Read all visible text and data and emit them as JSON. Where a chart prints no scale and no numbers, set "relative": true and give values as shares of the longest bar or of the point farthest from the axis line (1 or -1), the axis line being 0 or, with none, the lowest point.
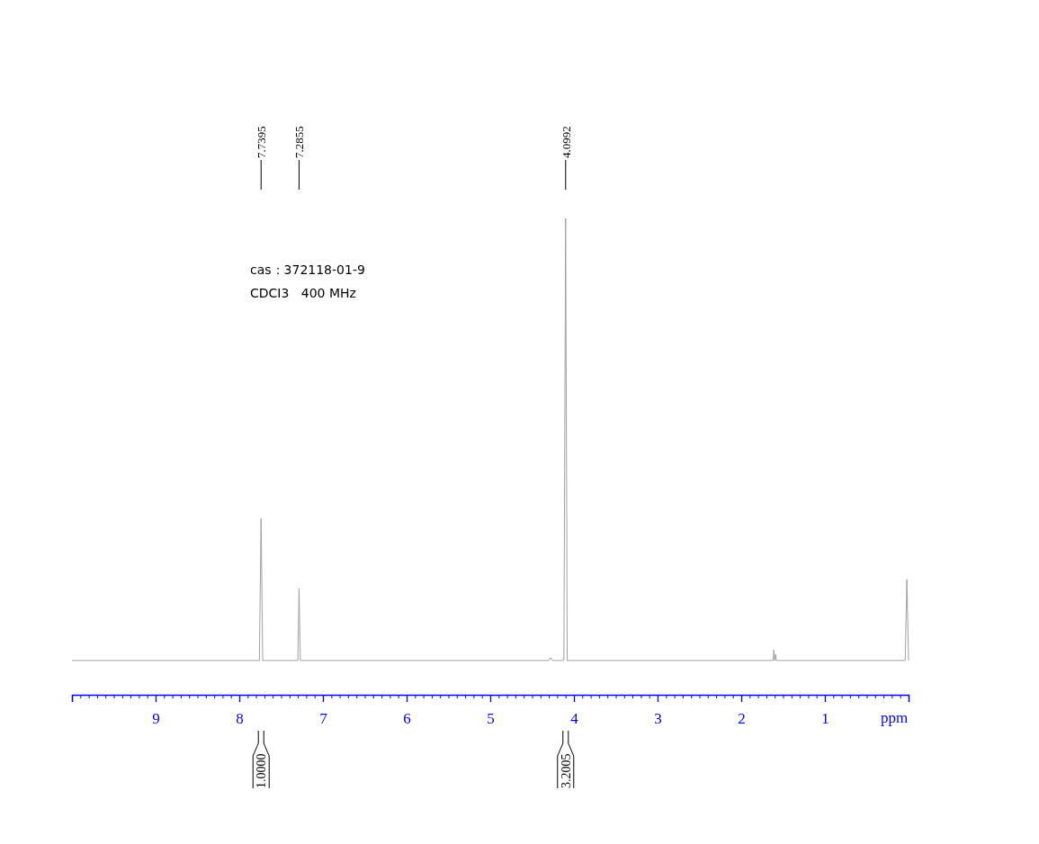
{
  "chart_data": {
    "type": "line",
    "relative": true,
    "xlabel": "ppm",
    "xlim": [
      10,
      0
    ],
    "xticks": [
      {
        "value": 10,
        "label": null
      },
      {
        "value": 9.9,
        "label": null
      },
      {
        "value": 9.8,
        "label": null
      },
      {
        "value": 9.7,
        "label": null
      },
      {
        "value": 9.6,
        "label": null
      },
      {
        "value": 9.5,
        "label": null
      },
      {
        "value": 9.4,
        "label": null
      },
      {
        "value": 9.3,
        "label": null
      },
      {
        "value": 9.2,
        "label": null
      },
      {
        "value": 9.1,
        "label": null
      },
      9,
      {
        "value": 8.9,
        "label": null
      },
      {
        "value": 8.8,
        "label": null
      },
      {
        "value": 8.7,
        "label": null
      },
      {
        "value": 8.6,
        "label": null
      },
      {
        "value": 8.5,
        "label": null
      },
      {
        "value": 8.4,
        "label": null
      },
      {
        "value": 8.3,
        "label": null
      },
      {
        "value": 8.2,
        "label": null
      },
      {
        "value": 8.1,
        "label": null
      },
      8,
      {
        "value": 7.9,
        "label": null
      },
      {
        "value": 7.8,
        "label": null
      },
      {
        "value": 7.7,
        "label": null
      },
      {
        "value": 7.6,
        "label": null
      },
      {
        "value": 7.5,
        "label": null
      },
      {
        "value": 7.4,
        "label": null
      },
      {
        "value": 7.3,
        "label": null
      },
      {
        "value": 7.2,
        "label": null
      },
      {
        "value": 7.1,
        "label": null
      },
      7,
      {
        "value": 6.9,
        "label": null
      },
      {
        "value": 6.8,
        "label": null
      },
      {
        "value": 6.7,
        "label": null
      },
      {
        "value": 6.6,
        "label": null
      },
      {
        "value": 6.5,
        "label": null
      },
      {
        "value": 6.4,
        "label": null
      },
      {
        "value": 6.3,
        "label": null
      },
      {
        "value": 6.2,
        "label": null
      },
      {
        "value": 6.1,
        "label": null
      },
      6,
      {
        "value": 5.9,
        "label": null
      },
      {
        "value": 5.8,
        "label": null
      },
      {
        "value": 5.7,
        "label": null
      },
      {
        "value": 5.6,
        "label": null
      },
      {
        "value": 5.5,
        "label": null
      },
      {
        "value": 5.4,
        "label": null
      },
      {
        "value": 5.3,
        "label": null
      },
      {
        "value": 5.2,
        "label": null
      },
      {
        "value": 5.1,
        "label": null
      },
      5,
      {
        "value": 4.9,
        "label": null
      },
      {
        "value": 4.8,
        "label": null
      },
      {
        "value": 4.7,
        "label": null
      },
      {
        "value": 4.6,
        "label": null
      },
      {
        "value": 4.5,
        "label": null
      },
      {
        "value": 4.4,
        "label": null
      },
      {
        "value": 4.3,
        "label": null
      },
      {
        "value": 4.2,
        "label": null
      },
      {
        "value": 4.1,
        "label": null
      },
      4,
      {
        "value": 3.9,
        "label": null
      },
      {
        "value": 3.8,
        "label": null
      },
      {
        "value": 3.7,
        "label": null
      },
      {
        "value": 3.6,
        "label": null
      },
      {
        "value": 3.5,
        "label": null
      },
      {
        "value": 3.4,
        "label": null
      },
      {
        "value": 3.3,
        "label": null
      },
      {
        "value": 3.2,
        "label": null
      },
      {
        "value": 3.1,
        "label": null
      },
      3,
      {
        "value": 2.9,
        "label": null
      },
      {
        "value": 2.8,
        "label": null
      },
      {
        "value": 2.7,
        "label": null
      },
      {
        "value": 2.6,
        "label": null
      },
      {
        "value": 2.5,
        "label": null
      },
      {
        "value": 2.4,
        "label": null
      },
      {
        "value": 2.3,
        "label": null
      },
      {
        "value": 2.2,
        "label": null
      },
      {
        "value": 2.1,
        "label": null
      },
      2,
      {
        "value": 1.9,
        "label": null
      },
      {
        "value": 1.8,
        "label": null
      },
      {
        "value": 1.7,
        "label": null
      },
      {
        "value": 1.6,
        "label": null
      },
      {
        "value": 1.5,
        "label": null
      },
      {
        "value": 1.4,
        "label": null
      },
      {
        "value": 1.3,
        "label": null
      },
      {
        "value": 1.2,
        "label": null
      },
      {
        "value": 1.1,
        "label": null
      },
      1,
      {
        "value": 0.9,
        "label": null
      },
      {
        "value": 0.8,
        "label": null
      },
      {
        "value": 0.7,
        "label": null
      },
      {
        "value": 0.6,
        "label": null
      },
      {
        "value": 0.5,
        "label": null
      },
      {
        "value": 0.4,
        "label": null
      },
      {
        "value": 0.3,
        "label": null
      },
      {
        "value": 0.2,
        "label": null
      },
      {
        "value": 0.1,
        "label": null
      },
      {
        "value": 0,
        "label": null
      }
    ],
    "series": [
      {
        "color": "#a0a0a0",
        "x": [
          10,
          7.76,
          7.7395,
          7.72,
          7.3,
          7.2855,
          7.27,
          4.3,
          4.28,
          4.26,
          4.12,
          4.0992,
          4.08,
          1.62,
          1.61,
          1.6,
          1.59,
          1.58,
          0.04,
          0.02,
          0.0
        ],
        "values": [
          0.072,
          0.072,
          0.37,
          0.072,
          0.072,
          0.223,
          0.072,
          0.072,
          0.078,
          0.072,
          0.072,
          1,
          0.072,
          0.072,
          0.094,
          0.072,
          0.085,
          0.072,
          0.072,
          0.242,
          0.072
        ]
      }
    ],
    "annotations": [
      {
        "text": "7.7395",
        "x": 7.7395
      },
      {
        "text": "7.2855",
        "x": 7.2855
      },
      {
        "text": "4.0992",
        "x": 4.0992
      },
      "1.0000",
      "3.2005",
      "cas：372118-01-9",
      "CDCI3   400 MHz"
    ]
  }
}
